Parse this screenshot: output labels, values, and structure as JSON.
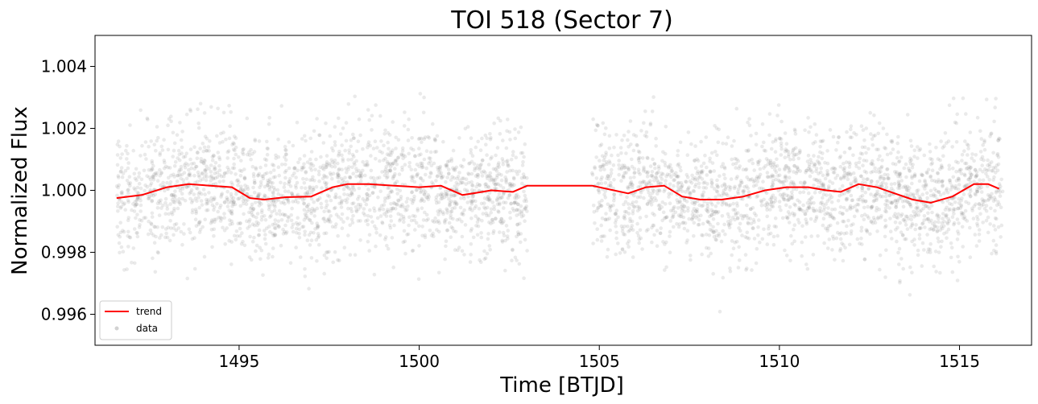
{
  "chart_data": {
    "type": "scatter",
    "title": "TOI 518 (Sector 7)",
    "xlabel": "Time [BTJD]",
    "ylabel": "Normalized Flux",
    "xlim": [
      1491.0,
      1517.0
    ],
    "ylim": [
      0.995,
      1.005
    ],
    "xticks": [
      1495,
      1500,
      1505,
      1510,
      1515
    ],
    "yticks": [
      0.996,
      0.998,
      1.0,
      1.002,
      1.004
    ],
    "ytick_labels": [
      "0.996",
      "0.998",
      "1.000",
      "1.002",
      "1.004"
    ],
    "legend": {
      "location": "lower-left",
      "entries": [
        "trend",
        "data"
      ]
    },
    "series": [
      {
        "name": "trend",
        "kind": "line",
        "color": "#ff0000",
        "x": [
          1491.6,
          1492.3,
          1493.0,
          1493.6,
          1494.2,
          1494.8,
          1495.3,
          1495.7,
          1496.3,
          1497.0,
          1497.6,
          1498.0,
          1498.6,
          1499.3,
          1500.0,
          1500.6,
          1501.2,
          1501.5,
          1502.0,
          1502.6,
          1503.0,
          1504.8,
          1505.4,
          1505.8,
          1506.3,
          1506.8,
          1507.3,
          1507.8,
          1508.4,
          1509.0,
          1509.6,
          1510.2,
          1510.8,
          1511.3,
          1511.7,
          1512.2,
          1512.7,
          1513.2,
          1513.7,
          1514.2,
          1514.8,
          1515.4,
          1515.8,
          1516.1
        ],
        "y": [
          0.99975,
          0.99985,
          1.0001,
          1.0002,
          1.00015,
          1.0001,
          0.99975,
          0.9997,
          0.99978,
          0.9998,
          1.0001,
          1.0002,
          1.0002,
          1.00015,
          1.0001,
          1.00015,
          0.99985,
          0.9999,
          1.0,
          0.99995,
          1.00015,
          1.00015,
          1.0,
          0.9999,
          1.0001,
          1.00015,
          0.9998,
          0.9997,
          0.9997,
          0.9998,
          1.0,
          1.0001,
          1.0001,
          1.0,
          0.99995,
          1.0002,
          1.0001,
          0.9999,
          0.9997,
          0.9996,
          0.9998,
          1.0002,
          1.0002,
          1.00005
        ]
      },
      {
        "name": "data",
        "kind": "scatter",
        "color": "#7f7f7f",
        "segments": [
          [
            1491.6,
            1503.0
          ],
          [
            1504.8,
            1516.2
          ]
        ],
        "center": 1.0,
        "std": 0.001,
        "n_points": 4200
      }
    ]
  }
}
